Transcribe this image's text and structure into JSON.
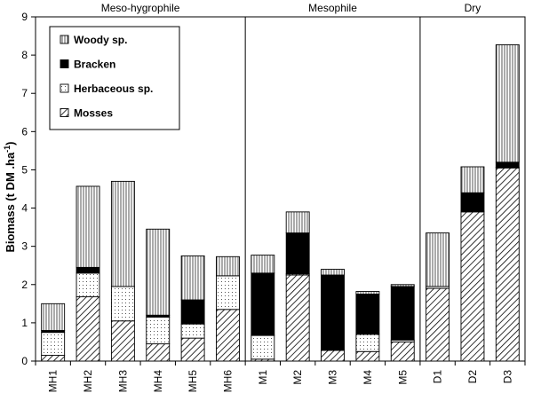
{
  "chart_data": {
    "type": "bar",
    "stacked": true,
    "ylabel_main": "Biomass (t DM .ha",
    "ylabel_sup": "-1",
    "ylabel_close": ")",
    "ylim": [
      0,
      9
    ],
    "yticks": [
      0,
      1,
      2,
      3,
      4,
      5,
      6,
      7,
      8,
      9
    ],
    "categories": [
      "MH1",
      "MH2",
      "MH3",
      "MH4",
      "MH5",
      "MH6",
      "M1",
      "M2",
      "M3",
      "M4",
      "M5",
      "D1",
      "D2",
      "D3"
    ],
    "groups": [
      {
        "label": "Meso-hygrophile",
        "start": 0,
        "end": 5
      },
      {
        "label": "Mesophile",
        "start": 6,
        "end": 10
      },
      {
        "label": "Dry",
        "start": 11,
        "end": 13
      }
    ],
    "series": [
      {
        "name": "Mosses",
        "pattern": "diagonal",
        "values": [
          0.15,
          1.68,
          1.05,
          0.45,
          0.6,
          1.35,
          0.05,
          2.25,
          0.28,
          0.25,
          0.5,
          1.9,
          3.9,
          5.05
        ]
      },
      {
        "name": "Herbaceous sp.",
        "pattern": "dots",
        "values": [
          0.6,
          0.62,
          0.9,
          0.7,
          0.37,
          0.88,
          0.62,
          0.03,
          0.02,
          0.45,
          0.05,
          0.05,
          0.02,
          0.02
        ]
      },
      {
        "name": "Bracken",
        "pattern": "solid",
        "values": [
          0.05,
          0.15,
          0.0,
          0.05,
          0.63,
          0.0,
          1.63,
          1.07,
          1.95,
          1.05,
          1.4,
          0.0,
          0.48,
          0.13
        ]
      },
      {
        "name": "Woody sp.",
        "pattern": "vertical",
        "values": [
          0.7,
          2.12,
          2.75,
          2.25,
          1.15,
          0.5,
          0.47,
          0.55,
          0.15,
          0.07,
          0.05,
          1.4,
          0.68,
          3.07
        ]
      }
    ],
    "legend_order": [
      "Woody sp.",
      "Bracken",
      "Herbaceous sp.",
      "Mosses"
    ],
    "legend_placement": "top-left",
    "grid": false
  }
}
